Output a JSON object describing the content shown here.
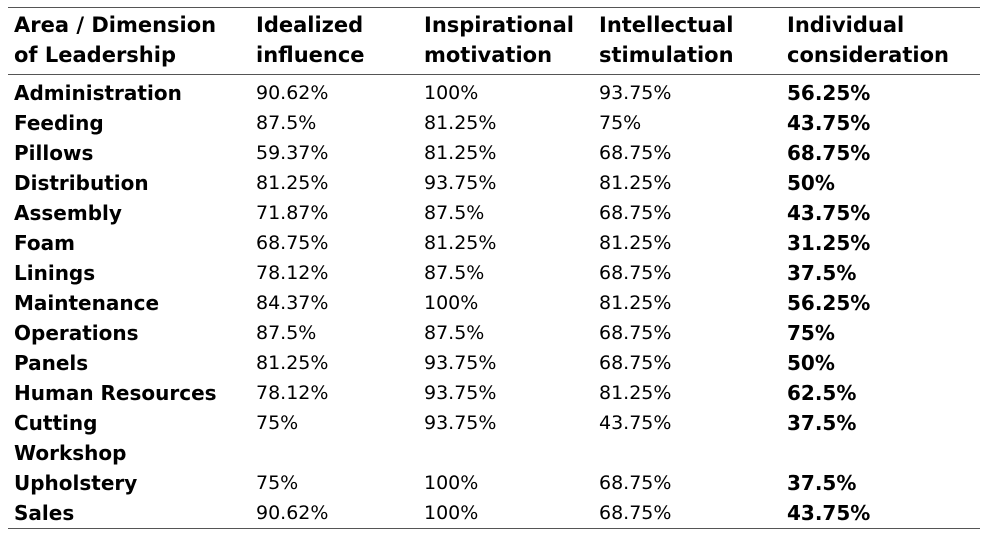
{
  "table": {
    "header": [
      "Area / Dimension of Leadership",
      "Idealized influence",
      "Inspirational motivation",
      "Intellectual stimulation",
      "Individual consideration"
    ],
    "rows": [
      [
        "Administration",
        "90.62%",
        "100%",
        "93.75%",
        "56.25%"
      ],
      [
        "Feeding",
        "87.5%",
        "81.25%",
        "75%",
        "43.75%"
      ],
      [
        "Pillows",
        "59.37%",
        "81.25%",
        "68.75%",
        "68.75%"
      ],
      [
        "Distribution",
        "81.25%",
        "93.75%",
        "81.25%",
        "50%"
      ],
      [
        "Assembly",
        "71.87%",
        "87.5%",
        "68.75%",
        "43.75%"
      ],
      [
        "Foam",
        "68.75%",
        "81.25%",
        "81.25%",
        "31.25%"
      ],
      [
        "Linings",
        "78.12%",
        "87.5%",
        "68.75%",
        "37.5%"
      ],
      [
        "Maintenance",
        "84.37%",
        "100%",
        "81.25%",
        "56.25%"
      ],
      [
        "Operations",
        "87.5%",
        "87.5%",
        "68.75%",
        "75%"
      ],
      [
        "Panels",
        "81.25%",
        "93.75%",
        "68.75%",
        "50%"
      ],
      [
        "Human Resources",
        "78.12%",
        "93.75%",
        "81.25%",
        "62.5%"
      ],
      [
        "Cutting Workshop",
        "75%",
        "93.75%",
        "43.75%",
        "37.5%"
      ],
      [
        "Upholstery",
        "75%",
        "100%",
        "68.75%",
        "37.5%"
      ],
      [
        "Sales",
        "90.62%",
        "100%",
        "68.75%",
        "43.75%"
      ]
    ]
  }
}
